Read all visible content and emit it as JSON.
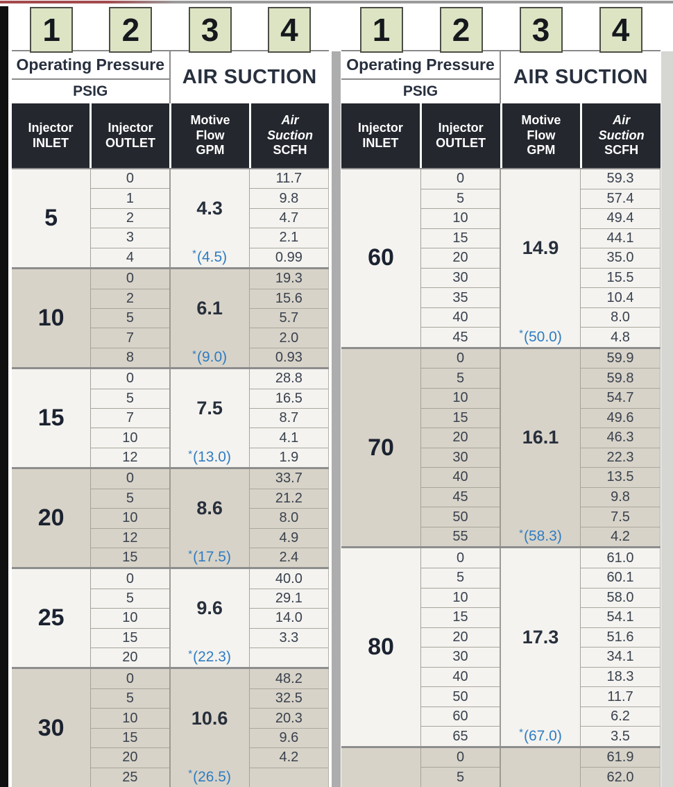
{
  "page": {
    "background": "#ffffff",
    "top_line_left_color": "#a34a4e",
    "top_line_color": "#9a9a9a",
    "left_bar_color": "#101010",
    "divider_color": "#adadad",
    "right_strip_color": "#d6d6d3"
  },
  "colors": {
    "badge_fill": "#dce4c4",
    "badge_border": "#4c4e45",
    "dark_header_bg": "#24272e",
    "light_group_bg": "#f4f3ef",
    "dark_group_bg": "#d8d3c8",
    "note_blue": "#2e7cc2",
    "header_navy": "#28303e"
  },
  "badges": [
    "1",
    "2",
    "3",
    "4"
  ],
  "header": {
    "operating_pressure": "Operating Pressure",
    "psig": "PSIG",
    "air_suction": "AIR SUCTION",
    "columns": [
      {
        "lines": [
          {
            "text": "Injector",
            "italic": false
          },
          {
            "text": "INLET",
            "italic": false
          }
        ]
      },
      {
        "lines": [
          {
            "text": "Injector",
            "italic": false
          },
          {
            "text": "OUTLET",
            "italic": false
          }
        ]
      },
      {
        "lines": [
          {
            "text": "Motive",
            "italic": false
          },
          {
            "text": "Flow",
            "italic": false
          },
          {
            "text": "GPM",
            "italic": false
          }
        ]
      },
      {
        "lines": [
          {
            "text": "Air",
            "italic": true
          },
          {
            "text": "Suction",
            "italic": true
          },
          {
            "text": "SCFH",
            "italic": false
          }
        ]
      }
    ]
  },
  "tables": [
    {
      "id": "left",
      "groups": [
        {
          "inlet": "5",
          "gpm": "4.3",
          "gpm_star": "(4.5)",
          "shade": "light",
          "rows": [
            {
              "outlet": "0",
              "scfh": "11.7"
            },
            {
              "outlet": "1",
              "scfh": "9.8"
            },
            {
              "outlet": "2",
              "scfh": "4.7"
            },
            {
              "outlet": "3",
              "scfh": "2.1"
            },
            {
              "outlet": "4",
              "scfh": "0.99"
            }
          ]
        },
        {
          "inlet": "10",
          "gpm": "6.1",
          "gpm_star": "(9.0)",
          "shade": "dark",
          "rows": [
            {
              "outlet": "0",
              "scfh": "19.3"
            },
            {
              "outlet": "2",
              "scfh": "15.6"
            },
            {
              "outlet": "5",
              "scfh": "5.7"
            },
            {
              "outlet": "7",
              "scfh": "2.0"
            },
            {
              "outlet": "8",
              "scfh": "0.93"
            }
          ]
        },
        {
          "inlet": "15",
          "gpm": "7.5",
          "gpm_star": "(13.0)",
          "shade": "light",
          "rows": [
            {
              "outlet": "0",
              "scfh": "28.8"
            },
            {
              "outlet": "5",
              "scfh": "16.5"
            },
            {
              "outlet": "7",
              "scfh": "8.7"
            },
            {
              "outlet": "10",
              "scfh": "4.1"
            },
            {
              "outlet": "12",
              "scfh": "1.9"
            }
          ]
        },
        {
          "inlet": "20",
          "gpm": "8.6",
          "gpm_star": "(17.5)",
          "shade": "dark",
          "rows": [
            {
              "outlet": "0",
              "scfh": "33.7"
            },
            {
              "outlet": "5",
              "scfh": "21.2"
            },
            {
              "outlet": "10",
              "scfh": "8.0"
            },
            {
              "outlet": "12",
              "scfh": "4.9"
            },
            {
              "outlet": "15",
              "scfh": "2.4"
            }
          ]
        },
        {
          "inlet": "25",
          "gpm": "9.6",
          "gpm_star": "(22.3)",
          "shade": "light",
          "rows": [
            {
              "outlet": "0",
              "scfh": "40.0"
            },
            {
              "outlet": "5",
              "scfh": "29.1"
            },
            {
              "outlet": "10",
              "scfh": "14.0"
            },
            {
              "outlet": "15",
              "scfh": "3.3"
            },
            {
              "outlet": "20",
              "scfh": ""
            }
          ]
        },
        {
          "inlet": "30",
          "gpm": "10.6",
          "gpm_star": "(26.5)",
          "shade": "dark",
          "rows": [
            {
              "outlet": "0",
              "scfh": "48.2"
            },
            {
              "outlet": "5",
              "scfh": "32.5"
            },
            {
              "outlet": "10",
              "scfh": "20.3"
            },
            {
              "outlet": "15",
              "scfh": "9.6"
            },
            {
              "outlet": "20",
              "scfh": "4.2"
            },
            {
              "outlet": "25",
              "scfh": ""
            }
          ]
        }
      ]
    },
    {
      "id": "right",
      "groups": [
        {
          "inlet": "60",
          "gpm": "14.9",
          "gpm_star": "(50.0)",
          "shade": "light",
          "rows": [
            {
              "outlet": "0",
              "scfh": "59.3"
            },
            {
              "outlet": "5",
              "scfh": "57.4"
            },
            {
              "outlet": "10",
              "scfh": "49.4"
            },
            {
              "outlet": "15",
              "scfh": "44.1"
            },
            {
              "outlet": "20",
              "scfh": "35.0"
            },
            {
              "outlet": "30",
              "scfh": "15.5"
            },
            {
              "outlet": "35",
              "scfh": "10.4"
            },
            {
              "outlet": "40",
              "scfh": "8.0"
            },
            {
              "outlet": "45",
              "scfh": "4.8"
            }
          ]
        },
        {
          "inlet": "70",
          "gpm": "16.1",
          "gpm_star": "(58.3)",
          "shade": "dark",
          "rows": [
            {
              "outlet": "0",
              "scfh": "59.9"
            },
            {
              "outlet": "5",
              "scfh": "59.8"
            },
            {
              "outlet": "10",
              "scfh": "54.7"
            },
            {
              "outlet": "15",
              "scfh": "49.6"
            },
            {
              "outlet": "20",
              "scfh": "46.3"
            },
            {
              "outlet": "30",
              "scfh": "22.3"
            },
            {
              "outlet": "40",
              "scfh": "13.5"
            },
            {
              "outlet": "45",
              "scfh": "9.8"
            },
            {
              "outlet": "50",
              "scfh": "7.5"
            },
            {
              "outlet": "55",
              "scfh": "4.2"
            }
          ]
        },
        {
          "inlet": "80",
          "gpm": "17.3",
          "gpm_star": "(67.0)",
          "shade": "light",
          "rows": [
            {
              "outlet": "0",
              "scfh": "61.0"
            },
            {
              "outlet": "5",
              "scfh": "60.1"
            },
            {
              "outlet": "10",
              "scfh": "58.0"
            },
            {
              "outlet": "15",
              "scfh": "54.1"
            },
            {
              "outlet": "20",
              "scfh": "51.6"
            },
            {
              "outlet": "30",
              "scfh": "34.1"
            },
            {
              "outlet": "40",
              "scfh": "18.3"
            },
            {
              "outlet": "50",
              "scfh": "11.7"
            },
            {
              "outlet": "60",
              "scfh": "6.2"
            },
            {
              "outlet": "65",
              "scfh": "3.5"
            }
          ]
        },
        {
          "inlet": "",
          "gpm": "",
          "gpm_star": "",
          "shade": "dark",
          "rows": [
            {
              "outlet": "0",
              "scfh": "61.9"
            },
            {
              "outlet": "5",
              "scfh": "62.0"
            }
          ]
        }
      ]
    }
  ]
}
